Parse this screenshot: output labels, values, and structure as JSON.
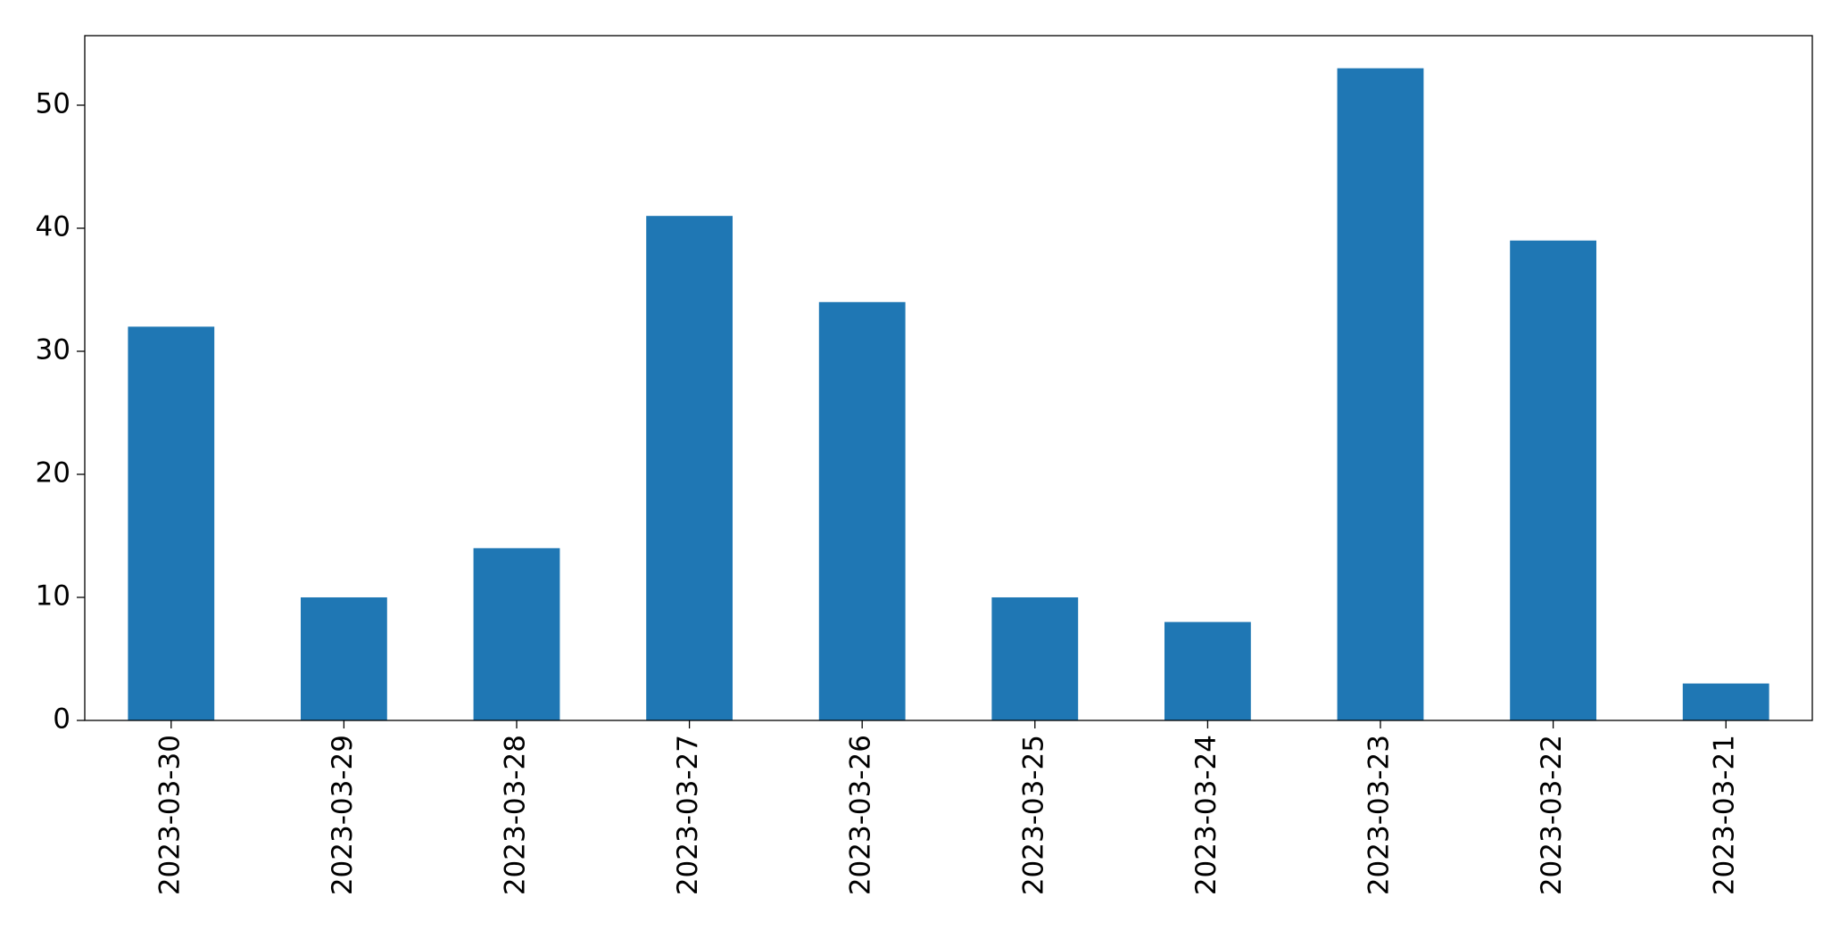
{
  "chart_data": {
    "type": "bar",
    "categories": [
      "2023-03-30",
      "2023-03-29",
      "2023-03-28",
      "2023-03-27",
      "2023-03-26",
      "2023-03-25",
      "2023-03-24",
      "2023-03-23",
      "2023-03-22",
      "2023-03-21"
    ],
    "values": [
      32,
      10,
      14,
      41,
      34,
      10,
      8,
      53,
      39,
      3
    ],
    "color": "#1f77b4",
    "ylim": [
      0,
      55.65
    ],
    "yticks": [
      0,
      10,
      20,
      30,
      40,
      50
    ],
    "grid": false
  }
}
